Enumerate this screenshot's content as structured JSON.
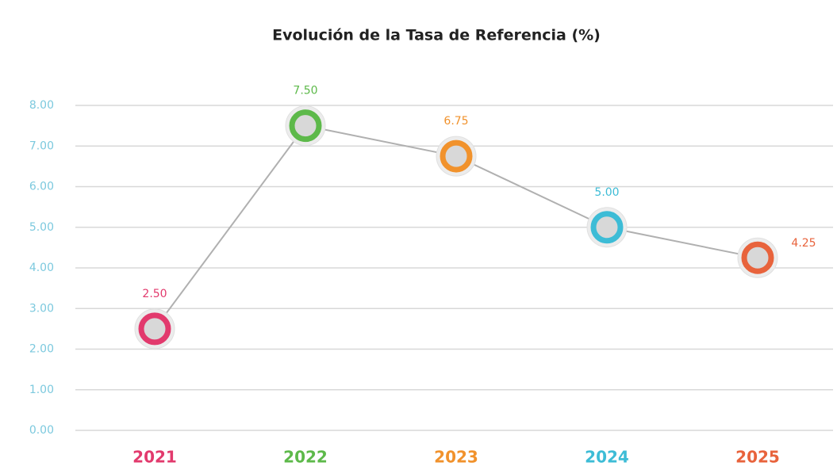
{
  "chart_data": {
    "type": "line",
    "title": "Evolución de la Tasa de Referencia (%)",
    "categories": [
      "2021",
      "2022",
      "2023",
      "2024",
      "2025"
    ],
    "values": [
      2.5,
      7.5,
      6.75,
      5.0,
      4.25
    ],
    "value_labels": [
      "2.50",
      "7.50",
      "6.75",
      "5.00",
      "4.25"
    ],
    "point_colors": [
      "#e23a6d",
      "#5db94a",
      "#f1922c",
      "#3dbcd6",
      "#e8633c"
    ],
    "line_color": "#b0b0b0",
    "ylim": [
      0,
      8
    ],
    "yticks": [
      {
        "value": 0,
        "label": "0.00"
      },
      {
        "value": 1,
        "label": "1.00"
      },
      {
        "value": 2,
        "label": "2.00"
      },
      {
        "value": 3,
        "label": "3.00"
      },
      {
        "value": 4,
        "label": "4.00"
      },
      {
        "value": 5,
        "label": "5.00"
      },
      {
        "value": 6,
        "label": "6.00"
      },
      {
        "value": 7,
        "label": "7.00"
      },
      {
        "value": 8,
        "label": "8.00"
      }
    ],
    "grid": true
  }
}
